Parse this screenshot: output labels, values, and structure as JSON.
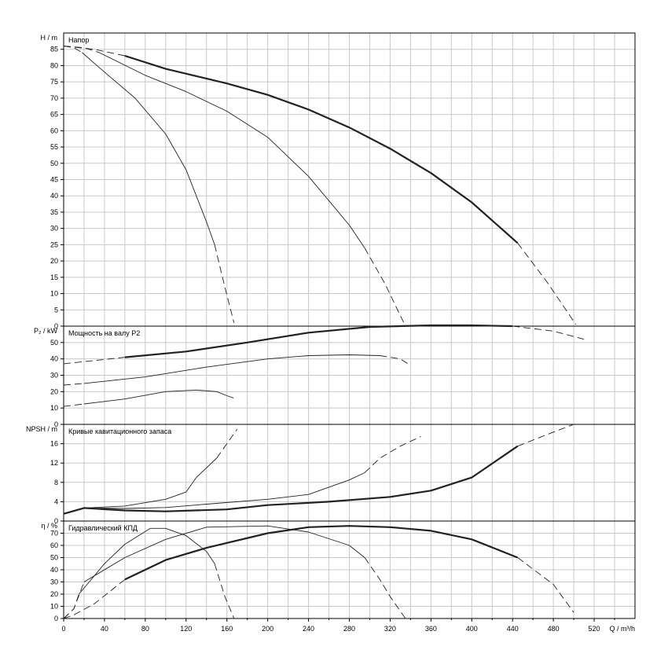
{
  "chart_data": [
    {
      "type": "line",
      "title": "Напор",
      "ylabel": "H / m",
      "xlabel": "Q / m³/h",
      "xlim": [
        0,
        560
      ],
      "ylim": [
        0,
        90
      ],
      "xticks": [
        "0",
        "40",
        "80",
        "120",
        "160",
        "200",
        "240",
        "280",
        "320",
        "360",
        "400",
        "440",
        "480",
        "520"
      ],
      "yticks": [
        "0",
        "5",
        "10",
        "15",
        "20",
        "25",
        "30",
        "35",
        "40",
        "45",
        "50",
        "55",
        "60",
        "65",
        "70",
        "75",
        "80",
        "85"
      ],
      "grid": true,
      "series": [
        {
          "weight": "heavy",
          "solid": [
            [
              60,
              83
            ],
            [
              100,
              79
            ],
            [
              160,
              74.5
            ],
            [
              200,
              71
            ],
            [
              240,
              66.5
            ],
            [
              280,
              61
            ],
            [
              320,
              54.5
            ],
            [
              360,
              47
            ],
            [
              400,
              38
            ],
            [
              445,
              25.5
            ]
          ],
          "dashed": [
            [
              0,
              86
            ],
            [
              30,
              85
            ],
            [
              60,
              83
            ]
          ],
          "dashed_end": [
            [
              445,
              25.5
            ],
            [
              475,
              13
            ],
            [
              502,
              0.5
            ]
          ]
        },
        {
          "weight": "thin",
          "solid": [
            [
              35,
              84
            ],
            [
              80,
              77
            ],
            [
              120,
              72
            ],
            [
              160,
              66
            ],
            [
              200,
              58
            ],
            [
              240,
              46
            ],
            [
              280,
              31
            ],
            [
              295,
              24
            ]
          ],
          "dashed": [
            [
              0,
              86
            ],
            [
              20,
              85.5
            ],
            [
              35,
              84
            ]
          ],
          "dashed_end": [
            [
              295,
              24
            ],
            [
              315,
              13
            ],
            [
              335,
              0
            ]
          ]
        },
        {
          "weight": "thin",
          "solid": [
            [
              18,
              84
            ],
            [
              40,
              78
            ],
            [
              70,
              70
            ],
            [
              100,
              59
            ],
            [
              120,
              48
            ],
            [
              140,
              32
            ],
            [
              148,
              25
            ]
          ],
          "dashed": [
            [
              0,
              86
            ],
            [
              10,
              85.5
            ],
            [
              18,
              84
            ]
          ],
          "dashed_end": [
            [
              148,
              25
            ],
            [
              158,
              12
            ],
            [
              167,
              1
            ]
          ]
        }
      ]
    },
    {
      "type": "line",
      "title": "Мощность на валу P2",
      "ylabel": "P₂ / kW",
      "xlim": [
        0,
        560
      ],
      "ylim": [
        0,
        60
      ],
      "yticks": [
        "0",
        "10",
        "20",
        "30",
        "40",
        "50"
      ],
      "grid": true,
      "series": [
        {
          "weight": "heavy",
          "solid": [
            [
              60,
              41
            ],
            [
              120,
              44.5
            ],
            [
              180,
              50
            ],
            [
              240,
              56
            ],
            [
              300,
              59.5
            ],
            [
              360,
              60.5
            ],
            [
              400,
              60.5
            ],
            [
              440,
              60
            ]
          ],
          "dashed": [
            [
              0,
              37
            ],
            [
              30,
              39
            ],
            [
              60,
              41
            ]
          ],
          "dashed_end": [
            [
              440,
              60
            ],
            [
              480,
              57
            ],
            [
              510,
              52
            ]
          ]
        },
        {
          "weight": "thin",
          "solid": [
            [
              20,
              25
            ],
            [
              80,
              29
            ],
            [
              140,
              35
            ],
            [
              200,
              40
            ],
            [
              240,
              42
            ],
            [
              280,
              42.5
            ],
            [
              310,
              42
            ]
          ],
          "dashed": [
            [
              0,
              24
            ],
            [
              20,
              25
            ]
          ],
          "dashed_end": [
            [
              310,
              42
            ],
            [
              330,
              40
            ],
            [
              340,
              36
            ]
          ]
        },
        {
          "weight": "thin",
          "solid": [
            [
              20,
              12.5
            ],
            [
              60,
              15.5
            ],
            [
              100,
              20
            ],
            [
              130,
              21
            ],
            [
              150,
              20
            ],
            [
              160,
              17.5
            ]
          ],
          "dashed": [
            [
              0,
              11
            ],
            [
              20,
              12.5
            ]
          ],
          "dashed_end": [
            [
              160,
              17.5
            ],
            [
              167,
              16
            ]
          ]
        }
      ]
    },
    {
      "type": "line",
      "title": "Кривые кавитационного запаса",
      "ylabel": "NPSH / m",
      "xlim": [
        0,
        560
      ],
      "ylim": [
        0,
        20
      ],
      "yticks": [
        "0",
        "4",
        "8",
        "12",
        "16"
      ],
      "grid": true,
      "series": [
        {
          "weight": "heavy",
          "solid": [
            [
              0,
              1.5
            ],
            [
              20,
              2.7
            ],
            [
              60,
              2.2
            ],
            [
              100,
              2
            ],
            [
              160,
              2.4
            ],
            [
              200,
              3.3
            ],
            [
              260,
              4
            ],
            [
              320,
              5
            ],
            [
              360,
              6.3
            ],
            [
              400,
              9
            ],
            [
              445,
              15.5
            ]
          ],
          "dashed": [],
          "dashed_end": [
            [
              445,
              15.5
            ],
            [
              475,
              18
            ],
            [
              500,
              20
            ]
          ]
        },
        {
          "weight": "thin",
          "solid": [
            [
              0,
              1.5
            ],
            [
              20,
              2.7
            ],
            [
              60,
              2.6
            ],
            [
              100,
              2.8
            ],
            [
              140,
              3.5
            ],
            [
              200,
              4.5
            ],
            [
              240,
              5.5
            ],
            [
              280,
              8.5
            ],
            [
              295,
              10
            ]
          ],
          "dashed": [],
          "dashed_end": [
            [
              295,
              10
            ],
            [
              310,
              13
            ],
            [
              330,
              15.5
            ],
            [
              350,
              17.5
            ]
          ]
        },
        {
          "weight": "thin",
          "solid": [
            [
              0,
              1.5
            ],
            [
              20,
              2.7
            ],
            [
              60,
              3.1
            ],
            [
              100,
              4.5
            ],
            [
              120,
              6
            ],
            [
              130,
              9
            ],
            [
              150,
              13
            ]
          ],
          "dashed": [],
          "dashed_end": [
            [
              150,
              13
            ],
            [
              160,
              16
            ],
            [
              170,
              19
            ]
          ]
        }
      ]
    },
    {
      "type": "line",
      "title": "Гидравлический КПД",
      "ylabel": "η / %",
      "xlabel": "Q / m³/h",
      "xlim": [
        0,
        560
      ],
      "ylim": [
        0,
        80
      ],
      "yticks": [
        "0",
        "10",
        "20",
        "30",
        "40",
        "50",
        "60",
        "70"
      ],
      "grid": true,
      "series": [
        {
          "weight": "heavy",
          "solid": [
            [
              60,
              32
            ],
            [
              100,
              48
            ],
            [
              140,
              58
            ],
            [
              200,
              70
            ],
            [
              240,
              75
            ],
            [
              280,
              76
            ],
            [
              320,
              75
            ],
            [
              360,
              72
            ],
            [
              400,
              65
            ],
            [
              445,
              50
            ]
          ],
          "dashed": [
            [
              0,
              0
            ],
            [
              10,
              3
            ],
            [
              30,
              12
            ],
            [
              60,
              32
            ]
          ],
          "dashed_end": [
            [
              445,
              50
            ],
            [
              480,
              28
            ],
            [
              500,
              5
            ]
          ]
        },
        {
          "weight": "thin",
          "solid": [
            [
              20,
              30
            ],
            [
              60,
              50
            ],
            [
              100,
              65
            ],
            [
              140,
              75
            ],
            [
              200,
              76
            ],
            [
              240,
              71
            ],
            [
              280,
              60
            ],
            [
              295,
              50
            ]
          ],
          "dashed": [
            [
              0,
              0
            ],
            [
              10,
              8
            ],
            [
              20,
              30
            ]
          ],
          "dashed_end": [
            [
              295,
              50
            ],
            [
              310,
              32
            ],
            [
              320,
              18
            ],
            [
              335,
              0
            ]
          ]
        },
        {
          "weight": "thin",
          "solid": [
            [
              15,
              20
            ],
            [
              40,
              45
            ],
            [
              60,
              61
            ],
            [
              85,
              74
            ],
            [
              100,
              74
            ],
            [
              120,
              68
            ],
            [
              140,
              55
            ],
            [
              148,
              45
            ]
          ],
          "dashed": [
            [
              0,
              0
            ],
            [
              10,
              8
            ],
            [
              15,
              20
            ]
          ],
          "dashed_end": [
            [
              148,
              45
            ],
            [
              158,
              18
            ],
            [
              167,
              0
            ]
          ]
        }
      ]
    }
  ]
}
